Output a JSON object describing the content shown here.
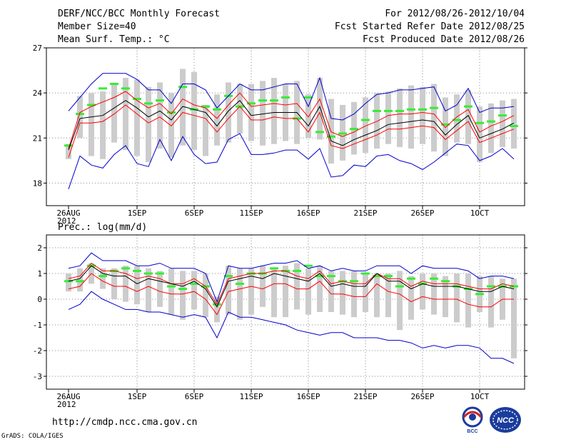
{
  "header": {
    "title": "DERF/NCC/BCC Monthly Forecast",
    "member": "Member Size=40",
    "variable": "Mean Surf. Temp.: °C",
    "period": "For 2012/08/26-2012/10/04",
    "started": "Fcst Started Refer Date 2012/08/25",
    "produced": "Fcst Produced Date 2012/08/26"
  },
  "footer": {
    "url": "http://cmdp.ncc.cma.gov.cn",
    "grads": "GrADS: COLA/IGES",
    "logo_bcc": "BCC",
    "logo_ncc": "NCC"
  },
  "colors": {
    "mean": "#000000",
    "spread": "#ff0000",
    "extreme": "#0000cc",
    "obs": "#33ee33",
    "bar": "#cccccc",
    "grid": "#888888"
  },
  "chart_data": [
    {
      "type": "line",
      "title": "Mean Surf. Temp.: °C",
      "ylim": [
        16.5,
        27
      ],
      "yticks": [
        18,
        21,
        24,
        27
      ],
      "x_count": 40,
      "xtick_index": [
        0,
        6,
        11,
        16,
        21,
        26,
        31,
        36
      ],
      "xtick_labels": [
        "26AUG",
        "1SEP",
        "6SEP",
        "11SEP",
        "16SEP",
        "21SEP",
        "26SEP",
        "1OCT"
      ],
      "xtick_sublabel": "2012",
      "series": [
        {
          "name": "ensemble_mean",
          "values": [
            20.2,
            22.3,
            22.4,
            22.5,
            23.0,
            23.5,
            23.0,
            22.4,
            22.8,
            22.2,
            23.1,
            22.9,
            22.7,
            21.8,
            22.8,
            23.5,
            22.5,
            22.6,
            22.7,
            22.7,
            22.7,
            21.8,
            23.1,
            20.8,
            20.5,
            20.9,
            21.2,
            21.5,
            21.9,
            22.0,
            22.1,
            22.2,
            22.1,
            21.2,
            21.9,
            22.5,
            21.0,
            21.3,
            21.6,
            22.0
          ]
        },
        {
          "name": "upper_spread",
          "values": [
            20.3,
            22.7,
            23.1,
            23.4,
            23.7,
            24.1,
            23.5,
            23.0,
            23.3,
            22.6,
            23.6,
            23.2,
            23.0,
            22.3,
            23.2,
            24.0,
            23.1,
            23.2,
            23.3,
            23.2,
            23.3,
            22.4,
            23.6,
            21.4,
            21.1,
            21.4,
            21.8,
            22.1,
            22.5,
            22.6,
            22.6,
            22.7,
            22.6,
            21.7,
            22.4,
            22.9,
            21.4,
            21.8,
            22.1,
            22.5
          ]
        },
        {
          "name": "lower_spread",
          "values": [
            19.7,
            22.0,
            22.0,
            22.1,
            22.6,
            23.2,
            22.6,
            22.0,
            22.4,
            21.8,
            22.7,
            22.5,
            22.3,
            21.4,
            22.3,
            23.1,
            22.2,
            22.2,
            22.4,
            22.3,
            22.3,
            21.4,
            22.7,
            20.5,
            20.3,
            20.6,
            20.9,
            21.2,
            21.6,
            21.6,
            21.7,
            21.8,
            21.7,
            20.9,
            21.5,
            22.1,
            20.7,
            21.0,
            21.3,
            21.6
          ]
        },
        {
          "name": "ensemble_max",
          "values": [
            22.8,
            23.7,
            24.6,
            25.3,
            25.3,
            25.3,
            24.9,
            24.2,
            24.2,
            23.3,
            24.6,
            24.6,
            24.2,
            23.0,
            23.8,
            24.6,
            24.2,
            24.2,
            24.4,
            24.6,
            24.6,
            23.1,
            25.0,
            22.3,
            22.2,
            22.6,
            23.3,
            23.9,
            24.0,
            24.2,
            24.2,
            24.3,
            24.4,
            22.8,
            23.2,
            24.3,
            22.7,
            23.0,
            23.0,
            23.1
          ]
        },
        {
          "name": "ensemble_min",
          "values": [
            17.6,
            19.8,
            19.2,
            19.0,
            19.9,
            20.5,
            19.3,
            19.1,
            20.9,
            19.5,
            21.1,
            19.9,
            19.3,
            19.4,
            20.9,
            21.3,
            19.9,
            19.9,
            20.0,
            20.2,
            20.2,
            19.6,
            20.3,
            18.4,
            18.5,
            19.2,
            19.1,
            19.8,
            19.9,
            19.5,
            19.3,
            18.9,
            19.4,
            20.0,
            20.6,
            20.5,
            19.5,
            19.8,
            20.3,
            19.6
          ]
        },
        {
          "name": "observation_like",
          "values": [
            20.5,
            22.6,
            23.2,
            24.3,
            24.6,
            24.3,
            23.6,
            23.3,
            23.5,
            22.7,
            24.4,
            22.9,
            23.1,
            22.9,
            23.8,
            23.1,
            23.3,
            23.5,
            23.5,
            23.7,
            22.3,
            23.7,
            21.4,
            21.1,
            21.3,
            21.6,
            22.2,
            22.8,
            22.8,
            22.8,
            22.9,
            22.9,
            23.0,
            21.9,
            22.2,
            23.1,
            22.0,
            22.1,
            22.5,
            21.8
          ]
        },
        {
          "name": "bar_top",
          "values": [
            20.6,
            23.8,
            24.0,
            24.1,
            24.6,
            25.0,
            24.9,
            24.4,
            24.7,
            24.0,
            25.6,
            25.4,
            23.2,
            23.9,
            24.7,
            24.6,
            24.6,
            24.8,
            25.0,
            24.6,
            24.8,
            23.9,
            25.0,
            23.6,
            23.2,
            23.4,
            23.7,
            24.0,
            24.1,
            24.3,
            24.5,
            24.4,
            24.6,
            23.7,
            23.9,
            24.2,
            23.1,
            23.3,
            23.5,
            23.6
          ]
        },
        {
          "name": "bar_bottom",
          "values": [
            19.6,
            21.0,
            19.8,
            19.6,
            20.7,
            20.2,
            19.8,
            19.4,
            20.3,
            19.7,
            20.5,
            20.2,
            19.8,
            20.5,
            20.7,
            21.3,
            20.8,
            20.5,
            20.6,
            20.8,
            20.6,
            21.0,
            20.9,
            19.3,
            19.5,
            19.9,
            20.0,
            20.3,
            20.6,
            20.4,
            20.3,
            20.6,
            20.1,
            19.8,
            20.7,
            20.6,
            19.4,
            20.0,
            20.4,
            20.3
          ]
        }
      ]
    },
    {
      "type": "line",
      "title": "Prec.: log(mm/d)",
      "ylim": [
        -3.5,
        2.5
      ],
      "yticks": [
        -3,
        -2,
        -1,
        0,
        1,
        2
      ],
      "x_count": 40,
      "xtick_index": [
        0,
        6,
        11,
        16,
        21,
        26,
        31,
        36
      ],
      "xtick_labels": [
        "26AUG",
        "1SEP",
        "6SEP",
        "11SEP",
        "16SEP",
        "21SEP",
        "26SEP",
        "1OCT"
      ],
      "xtick_sublabel": "2012",
      "series": [
        {
          "name": "ensemble_mean",
          "values": [
            0.7,
            0.8,
            1.3,
            1.0,
            0.9,
            0.9,
            0.6,
            0.8,
            0.7,
            0.6,
            0.5,
            0.7,
            0.4,
            -0.3,
            0.7,
            0.8,
            0.9,
            0.8,
            1.0,
            0.9,
            0.8,
            0.7,
            1.0,
            0.5,
            0.6,
            0.5,
            0.5,
            1.0,
            0.7,
            0.7,
            0.4,
            0.6,
            0.5,
            0.5,
            0.5,
            0.4,
            0.3,
            0.3,
            0.5,
            0.4
          ]
        },
        {
          "name": "upper_spread",
          "values": [
            0.8,
            0.9,
            1.4,
            1.1,
            1.1,
            1.0,
            0.8,
            0.9,
            0.8,
            0.6,
            0.6,
            0.8,
            0.5,
            -0.2,
            0.8,
            0.9,
            1.0,
            1.0,
            1.1,
            1.1,
            0.9,
            0.8,
            1.1,
            0.6,
            0.7,
            0.6,
            0.6,
            1.0,
            0.8,
            0.8,
            0.5,
            0.7,
            0.6,
            0.6,
            0.6,
            0.5,
            0.4,
            0.4,
            0.6,
            0.5
          ]
        },
        {
          "name": "lower_spread",
          "values": [
            0.4,
            0.5,
            1.0,
            0.7,
            0.5,
            0.5,
            0.3,
            0.5,
            0.3,
            0.2,
            0.2,
            0.3,
            0.0,
            -0.6,
            0.3,
            0.4,
            0.5,
            0.4,
            0.6,
            0.6,
            0.4,
            0.4,
            0.7,
            0.2,
            0.2,
            0.1,
            0.1,
            0.6,
            0.3,
            0.2,
            -0.1,
            0.1,
            0.0,
            0.0,
            0.0,
            -0.2,
            -0.3,
            -0.3,
            0.0,
            0.0
          ]
        },
        {
          "name": "ensemble_max",
          "values": [
            1.2,
            1.3,
            1.8,
            1.5,
            1.5,
            1.5,
            1.3,
            1.3,
            1.4,
            1.2,
            1.2,
            1.2,
            1.0,
            -0.1,
            1.3,
            1.2,
            1.2,
            1.3,
            1.4,
            1.4,
            1.5,
            1.2,
            1.3,
            1.1,
            1.2,
            1.1,
            1.1,
            1.3,
            1.3,
            1.3,
            1.0,
            1.3,
            1.2,
            1.2,
            1.2,
            1.1,
            0.8,
            0.9,
            0.9,
            0.8
          ]
        },
        {
          "name": "ensemble_min",
          "values": [
            -0.4,
            -0.2,
            0.3,
            0.0,
            -0.2,
            -0.4,
            -0.4,
            -0.5,
            -0.5,
            -0.6,
            -0.7,
            -0.6,
            -0.7,
            -1.5,
            -0.5,
            -0.7,
            -0.7,
            -0.8,
            -0.9,
            -1.0,
            -1.2,
            -1.3,
            -1.4,
            -1.3,
            -1.3,
            -1.5,
            -1.5,
            -1.5,
            -1.6,
            -1.6,
            -1.7,
            -1.9,
            -1.8,
            -1.9,
            -1.8,
            -1.8,
            -1.9,
            -2.3,
            -2.3,
            -2.5
          ]
        },
        {
          "name": "observation_like",
          "values": [
            0.7,
            0.7,
            1.3,
            0.9,
            1.1,
            1.2,
            1.1,
            1.0,
            1.0,
            0.5,
            0.4,
            0.6,
            0.5,
            -0.2,
            0.9,
            0.6,
            1.0,
            1.0,
            1.2,
            1.1,
            1.1,
            1.3,
            0.9,
            0.9,
            0.7,
            0.7,
            1.0,
            0.9,
            0.9,
            0.5,
            0.8,
            0.6,
            0.8,
            0.7,
            0.5,
            0.4,
            0.2,
            0.5,
            0.5,
            0.5
          ]
        },
        {
          "name": "bar_top",
          "values": [
            1.0,
            1.2,
            1.4,
            1.2,
            1.2,
            1.3,
            1.3,
            1.2,
            1.1,
            1.2,
            1.1,
            1.1,
            1.0,
            0.1,
            1.3,
            1.2,
            1.2,
            1.3,
            1.2,
            1.3,
            1.4,
            1.2,
            1.3,
            1.1,
            1.1,
            1.1,
            1.0,
            1.0,
            1.0,
            1.1,
            0.9,
            1.0,
            1.0,
            0.9,
            1.0,
            1.0,
            0.9,
            0.9,
            0.8,
            0.8
          ]
        },
        {
          "name": "bar_bottom",
          "values": [
            0.3,
            0.3,
            0.6,
            0.4,
            0.0,
            -0.1,
            -0.2,
            -0.5,
            -0.3,
            -0.6,
            -0.8,
            -0.4,
            -0.7,
            -0.9,
            -0.6,
            -0.8,
            -0.6,
            -0.3,
            -0.7,
            -0.7,
            -0.4,
            -0.6,
            -0.5,
            -0.5,
            -0.6,
            -0.7,
            -0.5,
            -0.7,
            -0.7,
            -1.2,
            -0.8,
            -0.4,
            -0.6,
            -0.7,
            -0.9,
            -1.1,
            -0.5,
            -1.1,
            -0.8,
            -2.3
          ]
        }
      ]
    }
  ]
}
